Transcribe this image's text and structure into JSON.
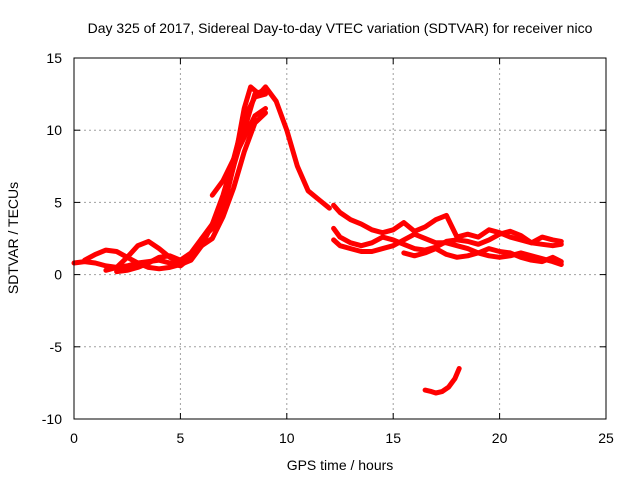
{
  "chart_data": {
    "type": "line",
    "title": "Day 325 of 2017, Sidereal Day-to-day VTEC variation (SDTVAR) for receiver nico",
    "xlabel": "GPS time / hours",
    "ylabel": "SDTVAR / TECUs",
    "xlim": [
      0,
      25
    ],
    "ylim": [
      -10,
      15
    ],
    "xticks": [
      0,
      5,
      10,
      15,
      20,
      25
    ],
    "yticks": [
      -10,
      -5,
      0,
      5,
      10,
      15
    ],
    "xtick_labels": [
      "0",
      "5",
      "10",
      "15",
      "20",
      "25"
    ],
    "ytick_labels": [
      "-10",
      "-5",
      "0",
      "5",
      "10",
      "15"
    ],
    "grid": true,
    "legend": "none",
    "series_color": "#ff0000",
    "series": [
      {
        "name": "track-1",
        "x": [
          0,
          0.5,
          1,
          1.5,
          2,
          2.5,
          3,
          3.5,
          4,
          4.5,
          5,
          5.5,
          6,
          6.5,
          7,
          7.5,
          8,
          8.3,
          8.7,
          9,
          9.5,
          10,
          10.5,
          11,
          11.5,
          12
        ],
        "y": [
          0.8,
          0.9,
          0.8,
          0.6,
          0.5,
          0.6,
          0.8,
          0.9,
          1,
          0.8,
          0.6,
          1.2,
          2.5,
          3.2,
          4.5,
          7.5,
          11.5,
          13,
          12.5,
          13,
          12,
          10,
          7.5,
          5.8,
          5.2,
          4.6
        ]
      },
      {
        "name": "track-2",
        "x": [
          0.5,
          1,
          1.5,
          2,
          2.5,
          3,
          3.5,
          4,
          4.5,
          5,
          5.5,
          6,
          6.5,
          7,
          7.5,
          8,
          8.5,
          9
        ],
        "y": [
          1,
          1.4,
          1.7,
          1.6,
          1.2,
          0.8,
          0.5,
          0.4,
          0.5,
          0.7,
          1,
          2,
          3.5,
          5,
          7.5,
          10,
          12.5,
          12.8
        ]
      },
      {
        "name": "track-3",
        "x": [
          1.5,
          2,
          2.5,
          3,
          3.5,
          4,
          4.5,
          5,
          5.5,
          6,
          6.5,
          7,
          7.5,
          8,
          8.5,
          9
        ],
        "y": [
          0.3,
          0.5,
          1.2,
          2,
          2.3,
          1.8,
          1.2,
          0.8,
          1.2,
          2,
          2.5,
          4,
          6,
          8.5,
          10.5,
          11.2
        ]
      },
      {
        "name": "track-4",
        "x": [
          2,
          2.5,
          3,
          3.5,
          4,
          4.5,
          5,
          5.5,
          6,
          6.5,
          7,
          7.5,
          8,
          8.5,
          9
        ],
        "y": [
          0.2,
          0.3,
          0.5,
          0.8,
          1.2,
          1.3,
          1,
          1.5,
          2.5,
          3.5,
          5.5,
          8,
          10.8,
          12.3,
          12.5
        ]
      },
      {
        "name": "track-5",
        "x": [
          6.5,
          7,
          7.5,
          8,
          8.5,
          9
        ],
        "y": [
          5.5,
          6.5,
          8,
          9.5,
          11,
          11.5
        ]
      },
      {
        "name": "track-6",
        "x": [
          12.2,
          12.5,
          13,
          13.5,
          14,
          14.5,
          15,
          15.5,
          16,
          16.5,
          17,
          17.5,
          18,
          18.5,
          19,
          19.5,
          20,
          20.5,
          21,
          21.5,
          22,
          22.5,
          22.9
        ],
        "y": [
          4.8,
          4.3,
          3.8,
          3.5,
          3.1,
          2.9,
          3.1,
          3.6,
          3,
          3.3,
          3.8,
          4.1,
          2.6,
          2.8,
          2.6,
          3.1,
          2.9,
          2.6,
          2.4,
          2.2,
          2.1,
          2,
          2.1
        ]
      },
      {
        "name": "track-7",
        "x": [
          12.2,
          12.5,
          13,
          13.5,
          14,
          14.5,
          15,
          15.5,
          16,
          16.5,
          17,
          17.5,
          18,
          18.5,
          19,
          19.5,
          20,
          20.5,
          21,
          21.5,
          22,
          22.5,
          22.9
        ],
        "y": [
          3.2,
          2.6,
          2.2,
          2,
          2.2,
          2.6,
          2.4,
          2.1,
          1.8,
          1.7,
          1.9,
          2.3,
          2.4,
          2.3,
          2.1,
          2.4,
          2.8,
          3,
          2.7,
          2.2,
          2.6,
          2.4,
          2.3
        ]
      },
      {
        "name": "track-8",
        "x": [
          12.2,
          12.5,
          13,
          13.5,
          14,
          14.5,
          15,
          15.5,
          16,
          16.5,
          17,
          17.5,
          18,
          18.5,
          19,
          19.5,
          20,
          20.5,
          21,
          21.5,
          22,
          22.5,
          22.9
        ],
        "y": [
          2.4,
          2,
          1.8,
          1.6,
          1.6,
          1.8,
          2,
          2.4,
          2.8,
          2.5,
          2.2,
          2.2,
          2,
          1.8,
          1.5,
          1.3,
          1.2,
          1.3,
          1.5,
          1.3,
          1.1,
          0.9,
          0.7
        ]
      },
      {
        "name": "track-9",
        "x": [
          15.5,
          16,
          16.5,
          17,
          17.5,
          18,
          18.5,
          19,
          19.5,
          20,
          20.5,
          21,
          21.5,
          22,
          22.5,
          22.9
        ],
        "y": [
          1.5,
          1.3,
          1.5,
          1.8,
          1.4,
          1.2,
          1.3,
          1.5,
          1.8,
          1.6,
          1.5,
          1.2,
          1,
          0.9,
          1.2,
          0.9
        ]
      },
      {
        "name": "track-10",
        "x": [
          16.5,
          16.8,
          17,
          17.3,
          17.6,
          17.9,
          18.1
        ],
        "y": [
          -8,
          -8.1,
          -8.2,
          -8.1,
          -7.8,
          -7.2,
          -6.5
        ]
      }
    ]
  }
}
